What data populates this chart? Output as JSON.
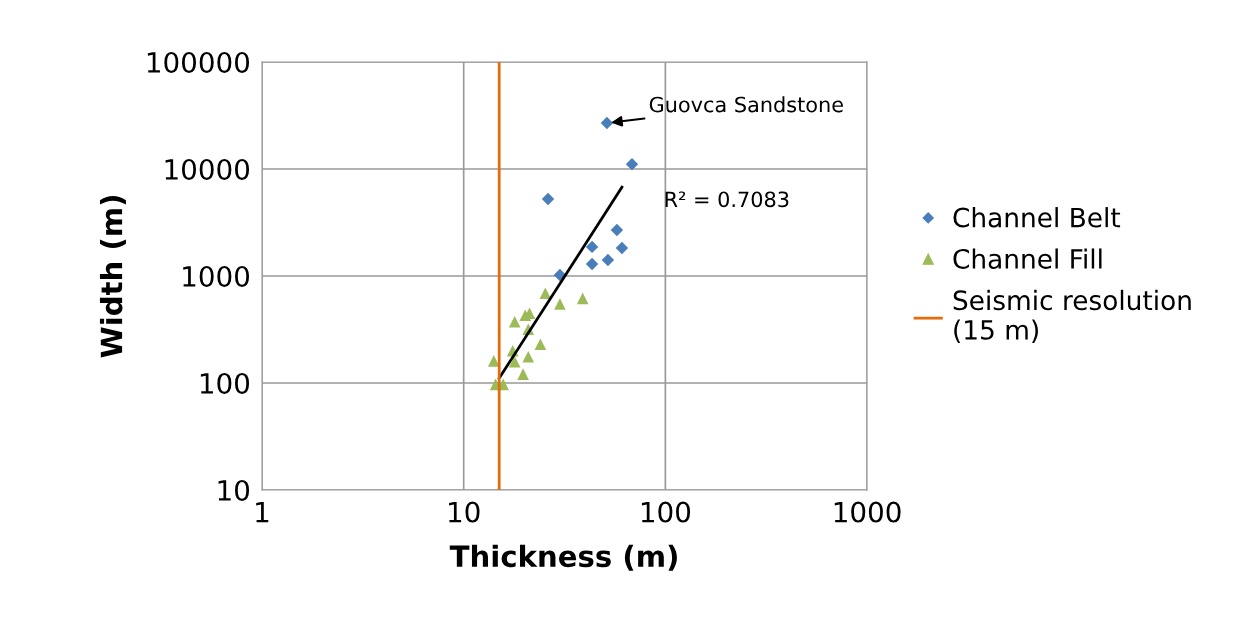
{
  "chart_data": {
    "type": "scatter",
    "xlabel": "Thickness (m)",
    "ylabel": "Width (m)",
    "log": "xy",
    "xlim": [
      1,
      1000
    ],
    "ylim": [
      10,
      100000
    ],
    "xticks": [
      1,
      10,
      100,
      1000
    ],
    "yticks": [
      10,
      100,
      1000,
      10000,
      100000
    ],
    "grid": true,
    "legend": "right",
    "series": [
      {
        "name": "Channel Belt",
        "color": "#4a7ebb",
        "marker": "diamond",
        "x": [
          51.3,
          68.3,
          26.2,
          57.5,
          43.3,
          60.9,
          43.3,
          51.9,
          30.0
        ],
        "values": [
          26900,
          11100,
          5250,
          2690,
          1870,
          1830,
          1295,
          1410,
          1020
        ]
      },
      {
        "name": "Channel Fill",
        "color": "#9bbb59",
        "marker": "triangle",
        "x": [
          25.4,
          38.9,
          30.0,
          21.2,
          20.2,
          17.9,
          20.9,
          24.0,
          17.5,
          20.9,
          14.1,
          17.9,
          19.7,
          14.4,
          15.7
        ],
        "values": [
          689,
          617,
          547,
          448,
          430,
          374,
          318,
          230,
          200,
          176,
          161,
          158,
          121,
          97,
          97
        ]
      },
      {
        "type": "line",
        "color": "#000000",
        "marker": "none",
        "x": [
          15.0,
          60.9
        ],
        "values": [
          111,
          6750
        ]
      },
      {
        "type": "line",
        "name": "Seismic resolution\n(15 m)",
        "color": "#e46c0a",
        "marker": "none",
        "x": [
          15,
          15
        ],
        "values": [
          10,
          100000
        ]
      }
    ],
    "annotations": [
      {
        "text": "Guovca Sandstone",
        "x": 51.3,
        "y": 26900
      },
      {
        "text": "R² = 0.7083",
        "x": 60.9,
        "y": 6750
      }
    ]
  }
}
